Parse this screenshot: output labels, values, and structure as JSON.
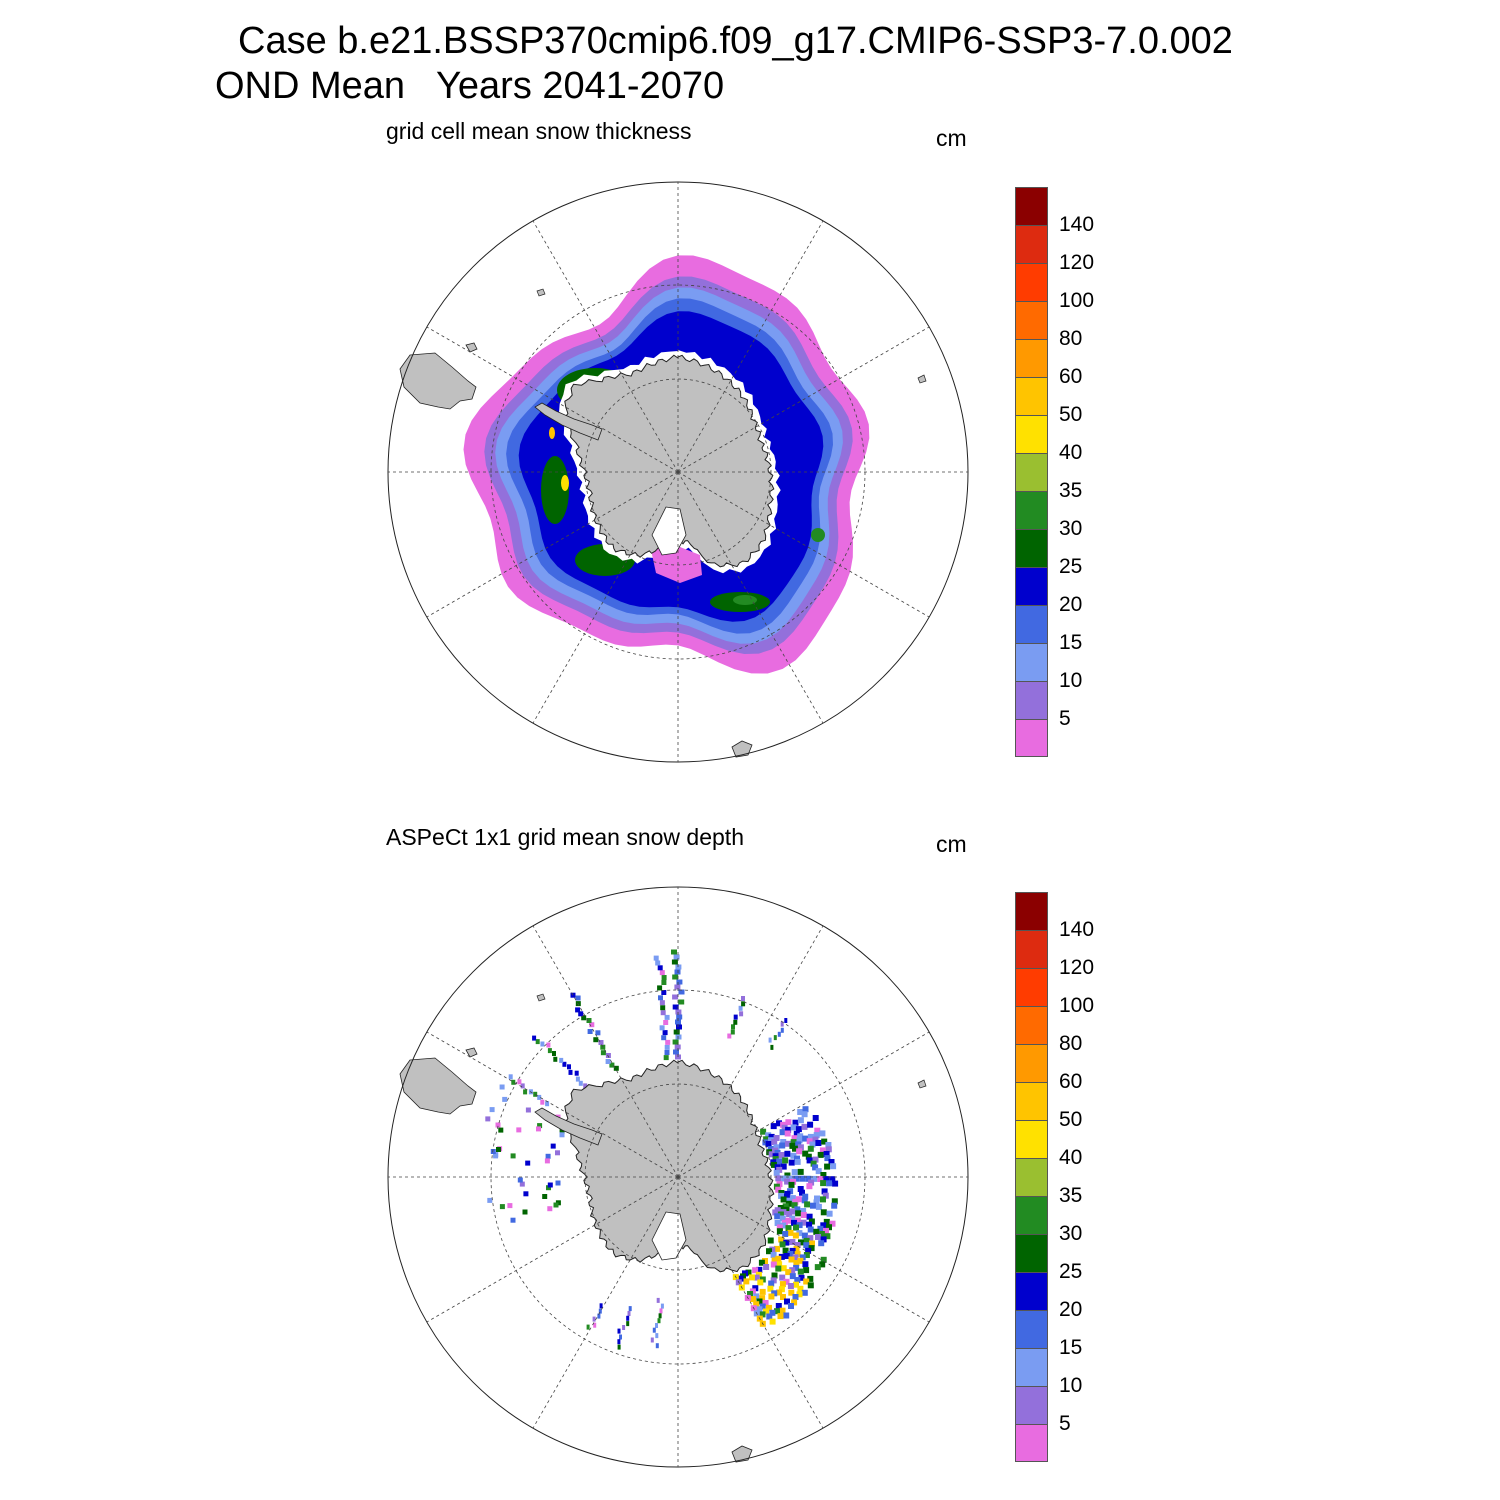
{
  "title": {
    "line1": "Case b.e21.BSSP370cmip6.f09_g17.CMIP6-SSP3-7.0.002",
    "line2": "OND Mean   Years 2041-2070"
  },
  "panels": [
    {
      "id": "top",
      "title": "grid cell mean snow thickness",
      "units": "cm",
      "style": "continuous-field"
    },
    {
      "id": "bottom",
      "title": "ASPeCt 1x1 grid mean snow depth",
      "units": "cm",
      "style": "ship-track-observations"
    }
  ],
  "colorbar": {
    "labels": [
      "140",
      "120",
      "100",
      "80",
      "60",
      "50",
      "40",
      "35",
      "30",
      "25",
      "20",
      "15",
      "10",
      "5"
    ],
    "colors": [
      "#8B0000",
      "#DD2B10",
      "#FF3C00",
      "#FF6A00",
      "#FF9900",
      "#FFC400",
      "#FFE100",
      "#9ABF30",
      "#228B22",
      "#006400",
      "#0000CD",
      "#4169E1",
      "#7A9CF2",
      "#9370DB",
      "#E86CE0"
    ]
  },
  "map": {
    "land_color": "#C0C0C0",
    "projection": "south-polar-stereographic",
    "graticule": "dashed"
  }
}
